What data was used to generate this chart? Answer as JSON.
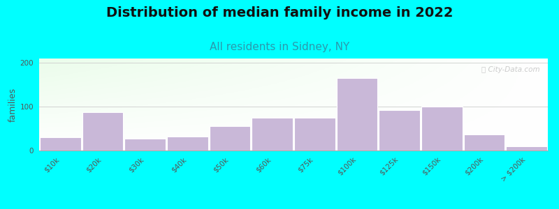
{
  "title": "Distribution of median family income in 2022",
  "subtitle": "All residents in Sidney, NY",
  "ylabel": "families",
  "categories": [
    "$10k",
    "$20k",
    "$30k",
    "$40k",
    "$50k",
    "$60k",
    "$75k",
    "$100k",
    "$125k",
    "$150k",
    "$200k",
    "> $200k"
  ],
  "values": [
    30,
    87,
    27,
    32,
    55,
    75,
    75,
    165,
    92,
    100,
    37,
    10
  ],
  "bar_color": "#c9b8d8",
  "bar_edge_color": "#ffffff",
  "yticks": [
    0,
    100,
    200
  ],
  "ylim": [
    0,
    210
  ],
  "background_color": "#00ffff",
  "title_fontsize": 14,
  "subtitle_fontsize": 11,
  "subtitle_color": "#2a9aad",
  "ylabel_fontsize": 9,
  "watermark_text": "⌖ City-Data.com",
  "grid_color": "#cccccc",
  "tick_color": "#555555",
  "tick_fontsize": 7.5
}
